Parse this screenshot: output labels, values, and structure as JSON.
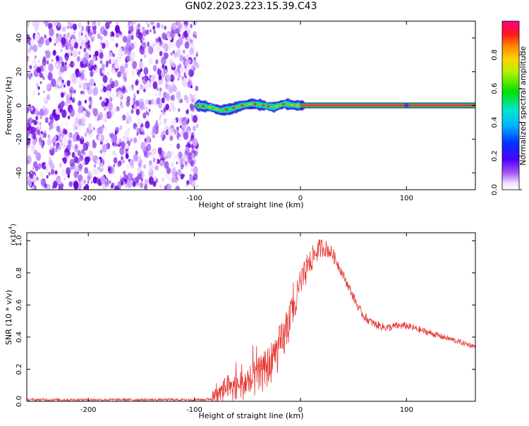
{
  "page_title": "GN02.2023.223.15.39.C43",
  "colorbar": {
    "label": "Normalized spectral amplitude",
    "ticks": [
      "0.0",
      "0.2",
      "0.4",
      "0.6",
      "0.8"
    ],
    "tick_values": [
      0.0,
      0.2,
      0.4,
      0.6,
      0.8
    ],
    "range": [
      0,
      1
    ],
    "colormap": "rainbow (violet-blue-cyan-green-yellow-orange-red-magenta)"
  },
  "chart_data": [
    {
      "type": "heatmap",
      "title": "",
      "xlabel": "Height of straight line (km)",
      "ylabel": "Frequency (Hz)",
      "xlim": [
        -258,
        165
      ],
      "ylim": [
        -50,
        50
      ],
      "x_ticks": [
        "-200",
        "-100",
        "0",
        "100"
      ],
      "x_tick_values": [
        -200,
        -100,
        0,
        100
      ],
      "y_ticks": [
        "-40",
        "-20",
        "0",
        "20",
        "40"
      ],
      "y_tick_values": [
        -40,
        -20,
        0,
        20,
        40
      ],
      "noise_region_x": [
        -258,
        -97
      ],
      "signal_line_frequency": 0,
      "signal_start_x": -97,
      "signal_wander": [
        {
          "x": -97,
          "f": 0
        },
        {
          "x": -85,
          "f": -1
        },
        {
          "x": -75,
          "f": -3
        },
        {
          "x": -65,
          "f": -2
        },
        {
          "x": -55,
          "f": 0
        },
        {
          "x": -45,
          "f": 1
        },
        {
          "x": -35,
          "f": 0
        },
        {
          "x": -25,
          "f": -1
        },
        {
          "x": -15,
          "f": 1
        },
        {
          "x": -5,
          "f": 0
        },
        {
          "x": 0,
          "f": 0
        },
        {
          "x": 165,
          "f": 0
        }
      ],
      "colors": {
        "noise": "#7a1fe0",
        "line_edge": "#1ed760",
        "line_core": "#e53939"
      }
    },
    {
      "type": "line",
      "title": "",
      "xlabel": "Height of straight line (km)",
      "ylabel": "SNR (10 * v/v)",
      "y_exponent_label": "(x10",
      "y_exponent": "4",
      "xlim": [
        -258,
        165
      ],
      "ylim": [
        0,
        1.05
      ],
      "x_ticks": [
        "-200",
        "-100",
        "0",
        "100"
      ],
      "x_tick_values": [
        -200,
        -100,
        0,
        100
      ],
      "y_ticks": [
        "0.0",
        "0.2",
        "0.4",
        "0.6",
        "0.8",
        "1.0"
      ],
      "y_tick_values": [
        0.0,
        0.2,
        0.4,
        0.6,
        0.8,
        1.0
      ],
      "color": "#e53935",
      "series": [
        {
          "x": [
            -258,
            -240,
            -220,
            -200,
            -180,
            -160,
            -140,
            -120,
            -100,
            -90,
            -82,
            -75,
            -70,
            -65,
            -60,
            -55,
            -50,
            -45,
            -40,
            -35,
            -30,
            -25,
            -20,
            -15,
            -10,
            -5,
            0,
            5,
            10,
            15,
            20,
            25,
            30,
            35,
            40,
            45,
            50,
            55,
            60,
            65,
            70,
            75,
            80,
            85,
            90,
            95,
            100,
            110,
            120,
            130,
            140,
            150,
            160,
            165
          ],
          "y": [
            0.01,
            0.01,
            0.01,
            0.01,
            0.01,
            0.01,
            0.01,
            0.01,
            0.01,
            0.01,
            0.02,
            0.05,
            0.08,
            0.09,
            0.1,
            0.11,
            0.12,
            0.13,
            0.15,
            0.18,
            0.22,
            0.27,
            0.33,
            0.4,
            0.5,
            0.6,
            0.72,
            0.8,
            0.88,
            0.93,
            0.96,
            0.95,
            0.92,
            0.86,
            0.79,
            0.72,
            0.65,
            0.58,
            0.53,
            0.5,
            0.48,
            0.47,
            0.46,
            0.46,
            0.47,
            0.47,
            0.47,
            0.45,
            0.43,
            0.41,
            0.39,
            0.37,
            0.35,
            0.34
          ]
        }
      ],
      "noise_amplitude": [
        {
          "x": -258,
          "a": 0.008
        },
        {
          "x": -85,
          "a": 0.008
        },
        {
          "x": -80,
          "a": 0.06
        },
        {
          "x": -60,
          "a": 0.1
        },
        {
          "x": -40,
          "a": 0.12
        },
        {
          "x": -20,
          "a": 0.14
        },
        {
          "x": 0,
          "a": 0.1
        },
        {
          "x": 20,
          "a": 0.06
        },
        {
          "x": 40,
          "a": 0.03
        },
        {
          "x": 165,
          "a": 0.015
        }
      ]
    }
  ]
}
